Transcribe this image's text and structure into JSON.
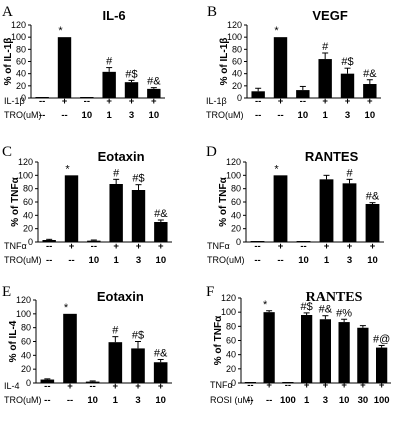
{
  "chart_data": [
    {
      "type": "bar",
      "panel_label": "A",
      "title": "IL-6",
      "ylabel": "% of IL-1β",
      "ylim": [
        0,
        120
      ],
      "yticks": [
        0,
        20,
        40,
        60,
        80,
        100,
        120
      ],
      "row_labels": [
        "IL-1β",
        "TRO(uM)"
      ],
      "rows": [
        [
          "--",
          "+",
          "--",
          "+",
          "+",
          "+"
        ],
        [
          "--",
          "--",
          "10",
          "1",
          "3",
          "10"
        ]
      ],
      "values": [
        0,
        100,
        0,
        43,
        26,
        15
      ],
      "errors": [
        0,
        0,
        0,
        7,
        3,
        2
      ],
      "annotations": [
        "",
        "*",
        "",
        "#",
        "#$",
        "#&"
      ]
    },
    {
      "type": "bar",
      "panel_label": "B",
      "title": "VEGF",
      "ylabel": "% of IL-1β",
      "ylim": [
        0,
        120
      ],
      "yticks": [
        0,
        20,
        40,
        60,
        80,
        100,
        120
      ],
      "row_labels": [
        "IL-1β",
        "TRO(uM)"
      ],
      "rows": [
        [
          "--",
          "+",
          "--",
          "+",
          "+",
          "+"
        ],
        [
          "--",
          "--",
          "10",
          "1",
          "3",
          "10"
        ]
      ],
      "values": [
        11,
        100,
        13,
        64,
        40,
        23
      ],
      "errors": [
        5,
        0,
        6,
        10,
        9,
        7
      ],
      "annotations": [
        "",
        "*",
        "",
        "#",
        "#$",
        "#&"
      ]
    },
    {
      "type": "bar",
      "panel_label": "C",
      "title": "Eotaxin",
      "ylabel": "% of TNFα",
      "ylim": [
        0,
        120
      ],
      "yticks": [
        0,
        20,
        40,
        60,
        80,
        100,
        120
      ],
      "row_labels": [
        "TNFα",
        "TRO(uM)"
      ],
      "rows": [
        [
          "--",
          "+",
          "--",
          "+",
          "+",
          "+"
        ],
        [
          "--",
          "--",
          "10",
          "1",
          "3",
          "10"
        ]
      ],
      "values": [
        3,
        100,
        2,
        87,
        78,
        30
      ],
      "errors": [
        1,
        0,
        1,
        7,
        8,
        3
      ],
      "annotations": [
        "",
        "*",
        "",
        "#",
        "#$",
        "#&"
      ]
    },
    {
      "type": "bar",
      "panel_label": "D",
      "title": "RANTES",
      "ylabel": "% of TNFα",
      "ylim": [
        0,
        120
      ],
      "yticks": [
        0,
        20,
        40,
        60,
        80,
        100,
        120
      ],
      "row_labels": [
        "TNFα",
        "TRO(uM)"
      ],
      "rows": [
        [
          "--",
          "+",
          "--",
          "+",
          "+",
          "+"
        ],
        [
          "--",
          "--",
          "10",
          "1",
          "3",
          "10"
        ]
      ],
      "values": [
        0,
        100,
        0,
        94,
        88,
        57
      ],
      "errors": [
        0,
        0,
        0,
        6,
        6,
        2
      ],
      "annotations": [
        "",
        "*",
        "",
        "",
        "#",
        "#&"
      ]
    },
    {
      "type": "bar",
      "panel_label": "E",
      "title": "Eotaxin",
      "ylabel": "% of IL-4",
      "ylim": [
        0,
        120
      ],
      "yticks": [
        0,
        20,
        40,
        60,
        80,
        100,
        120
      ],
      "row_labels": [
        "IL-4",
        "TRO(uM)"
      ],
      "rows": [
        [
          "--",
          "+",
          "--",
          "+",
          "+",
          "+"
        ],
        [
          "--",
          "--",
          "10",
          "1",
          "3",
          "10"
        ]
      ],
      "values": [
        5,
        100,
        2,
        59,
        50,
        30
      ],
      "errors": [
        1,
        0,
        1,
        8,
        10,
        4
      ],
      "annotations": [
        "",
        "*",
        "",
        "#",
        "#$",
        "#&"
      ]
    },
    {
      "type": "bar",
      "panel_label": "F",
      "title": "RANTES",
      "ylabel": "% of TNFα",
      "ylim": [
        0,
        120
      ],
      "yticks": [
        0,
        20,
        40,
        60,
        80,
        100,
        120
      ],
      "row_labels": [
        "TNFα",
        "ROSI (uM)"
      ],
      "rows": [
        [
          "--",
          "+",
          "--",
          "+",
          "+",
          "+",
          "+",
          "+"
        ],
        [
          "--",
          "--",
          "100",
          "1",
          "3",
          "10",
          "30",
          "100"
        ]
      ],
      "values": [
        0,
        100,
        0,
        96,
        90,
        86,
        78,
        50
      ],
      "errors": [
        0,
        2,
        0,
        3,
        5,
        4,
        3,
        3
      ],
      "annotations": [
        "",
        "*",
        "",
        "#$",
        "#&",
        "#%",
        "",
        "#@"
      ]
    }
  ]
}
